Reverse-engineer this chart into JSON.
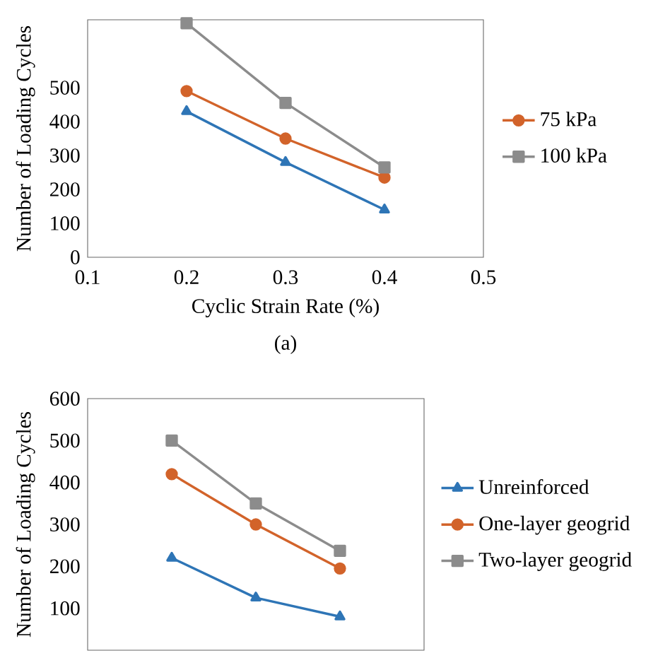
{
  "chart_data": [
    {
      "type": "line",
      "xlabel": "Cyclic Strain Rate (%)",
      "ylabel": "Number of Loading Cycles",
      "annotations": [
        "(a)"
      ],
      "x": [
        0.2,
        0.3,
        0.4
      ],
      "xlim": [
        0.1,
        0.5
      ],
      "xticks": [
        0.1,
        0.2,
        0.3,
        0.4,
        0.5
      ],
      "ylim": [
        0,
        700
      ],
      "yticks": [
        0,
        100,
        200,
        300,
        400,
        500
      ],
      "legend": "right",
      "series": [
        {
          "color": "#2e75b6",
          "marker": "triangle",
          "values": [
            430,
            280,
            140
          ]
        },
        {
          "name": "75 kPa",
          "color": "#d2632a",
          "marker": "circle",
          "values": [
            490,
            350,
            235
          ]
        },
        {
          "name": "100 kPa",
          "color": "#8c8c8c",
          "marker": "square",
          "values": [
            690,
            455,
            265
          ]
        }
      ]
    },
    {
      "type": "line",
      "ylabel": "Number of Loading Cycles",
      "categories": [
        null,
        null,
        null
      ],
      "ylim": [
        0,
        600
      ],
      "yticks": [
        100,
        200,
        300,
        400,
        500,
        600
      ],
      "legend": "right",
      "tick_labels": "y",
      "series": [
        {
          "name": "Unreinforced",
          "color": "#2e75b6",
          "marker": "triangle",
          "values": [
            220,
            125,
            80
          ]
        },
        {
          "name": "One-layer geogrid",
          "color": "#d2632a",
          "marker": "circle",
          "values": [
            420,
            300,
            195
          ]
        },
        {
          "name": "Two-layer geogrid",
          "color": "#8c8c8c",
          "marker": "square",
          "values": [
            500,
            350,
            237
          ]
        }
      ]
    }
  ]
}
